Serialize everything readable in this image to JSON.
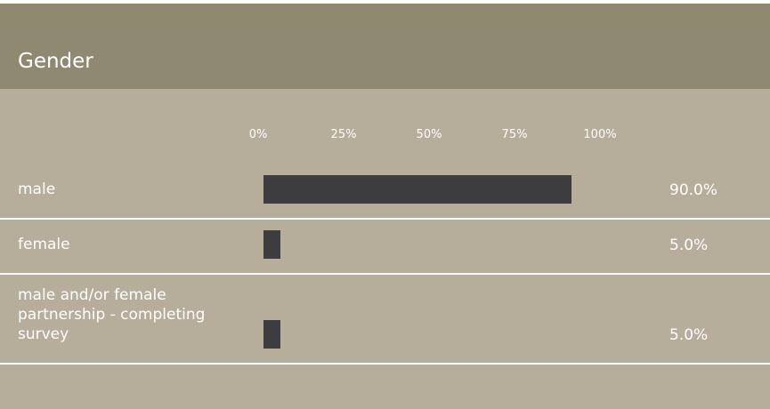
{
  "chart_data": {
    "type": "bar",
    "orientation": "horizontal",
    "title": "Gender",
    "categories": [
      "male",
      "female",
      "male and/or female partnership - completing survey"
    ],
    "values": [
      90.0,
      5.0,
      5.0
    ],
    "value_labels": [
      "90.0%",
      "5.0%",
      "5.0%"
    ],
    "color": "#3d3c3e",
    "xlim": [
      0,
      100
    ],
    "xticks": [
      {
        "value": 0,
        "label": "0%"
      },
      {
        "value": 25,
        "label": "25%"
      },
      {
        "value": 50,
        "label": "50%"
      },
      {
        "value": 75,
        "label": "75%"
      },
      {
        "value": 100,
        "label": "100%"
      }
    ]
  }
}
